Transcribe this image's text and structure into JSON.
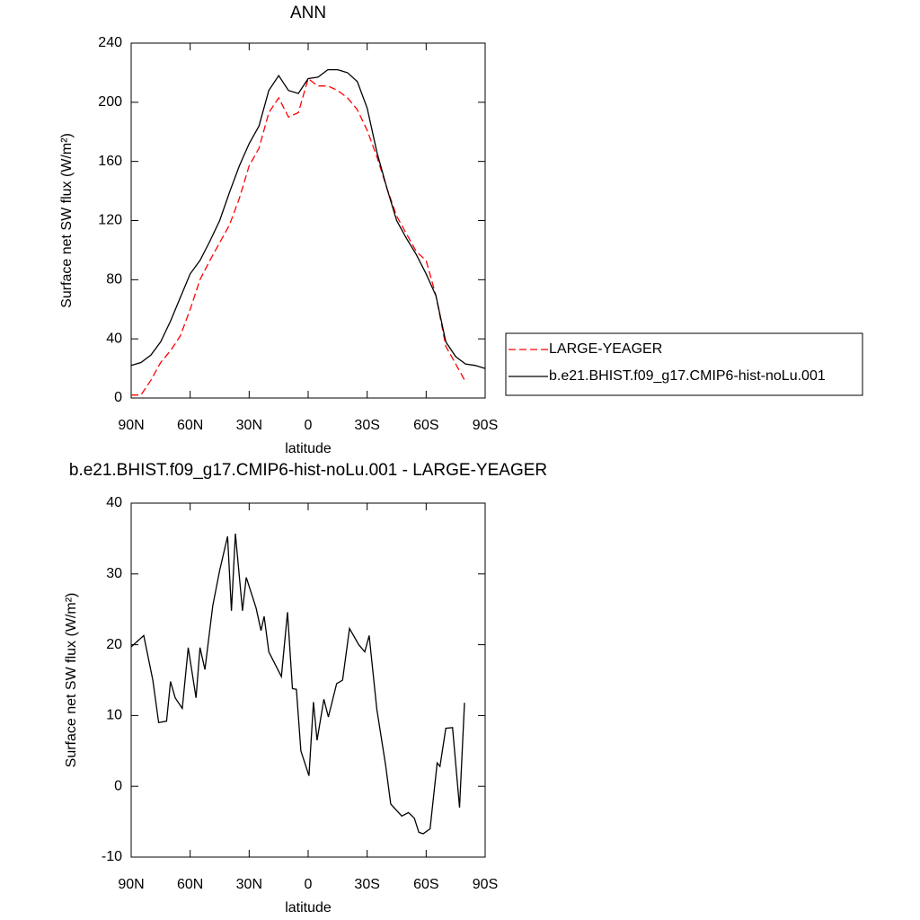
{
  "chart_data": [
    {
      "type": "line",
      "title": "ANN",
      "x_label": "latitude",
      "y_label": "Surface net SW flux (W/m²)",
      "x": [
        90,
        85,
        80,
        75,
        70,
        65,
        60,
        55,
        50,
        45,
        40,
        35,
        30,
        25,
        20,
        15,
        10,
        5,
        0,
        -5,
        -10,
        -15,
        -20,
        -25,
        -30,
        -35,
        -40,
        -45,
        -50,
        -55,
        -60,
        -65,
        -70,
        -75,
        -80,
        -85,
        -90
      ],
      "series": [
        {
          "name": "LARGE-YEAGER",
          "color": "#ff0000",
          "dash": true,
          "values": [
            2,
            2,
            12,
            24,
            32,
            42,
            60,
            80,
            93,
            105,
            117,
            135,
            157,
            169,
            193,
            203,
            190,
            193,
            216,
            211,
            211,
            208,
            203,
            195,
            181,
            163,
            142,
            123,
            111,
            99,
            93,
            69,
            35,
            23,
            11,
            null,
            null
          ]
        },
        {
          "name": "b.e21.BHIST.f09_g17.CMIP6-hist-noLu.001",
          "color": "#000000",
          "dash": false,
          "values": [
            22,
            24,
            29,
            38,
            52,
            68,
            84,
            93,
            106,
            120,
            139,
            157,
            172,
            184,
            208,
            218,
            208,
            206,
            216,
            217,
            222,
            222,
            220,
            214,
            196,
            166,
            142,
            120,
            108,
            97,
            84,
            69,
            38,
            28,
            23,
            22,
            20
          ]
        }
      ],
      "xlim": [
        90,
        -90
      ],
      "xticks": [
        {
          "value": 90,
          "label": "90N"
        },
        {
          "value": 60,
          "label": "60N"
        },
        {
          "value": 30,
          "label": "30N"
        },
        0,
        {
          "value": -30,
          "label": "30S"
        },
        {
          "value": -60,
          "label": "60S"
        },
        {
          "value": -90,
          "label": "90S"
        }
      ],
      "ylim": [
        0,
        240
      ],
      "yticks": [
        0,
        40,
        80,
        120,
        160,
        200,
        240
      ],
      "legend": "right"
    },
    {
      "type": "line",
      "title": "b.e21.BHIST.f09_g17.CMIP6-hist-noLu.001 - LARGE-YEAGER",
      "x_label": "latitude",
      "y_label": "Surface net SW flux (W/m²)",
      "x": [
        90,
        83.6,
        79,
        76,
        72,
        70,
        67.6,
        64,
        61,
        57,
        55,
        52.5,
        48.5,
        45,
        41,
        39,
        37,
        33.4,
        31.5,
        26.5,
        24,
        22.4,
        20,
        13.6,
        10.5,
        8,
        6,
        3.7,
        -0.4,
        -2.7,
        -4.5,
        -8,
        -10.3,
        -14.5,
        -17.5,
        -21,
        -25.7,
        -28.8,
        -31,
        -34.9,
        -39.4,
        -42,
        -47.6,
        -51,
        -54,
        -56.3,
        -58.5,
        -62,
        -65.6,
        -67,
        -70,
        -73.4,
        -77,
        -79.5
      ],
      "values": [
        19.7,
        21.3,
        15,
        9,
        9.2,
        14.8,
        12.5,
        11,
        19.6,
        12.5,
        19.6,
        16.5,
        25.5,
        30.5,
        35.3,
        24.8,
        35.7,
        24.8,
        29.5,
        25.2,
        22,
        24,
        19,
        15.5,
        24.6,
        13.8,
        13.7,
        5,
        1.5,
        11.9,
        6.5,
        12.3,
        9.8,
        14.5,
        15,
        22.3,
        20,
        19,
        21.3,
        10.9,
        3,
        -2.5,
        -4.2,
        -3.7,
        -4.5,
        -6.5,
        -6.7,
        -6,
        3.3,
        2.8,
        8.2,
        8.3,
        -3,
        11.8
      ],
      "color": "#000000",
      "xlim": [
        90,
        -90
      ],
      "xticks": [
        {
          "value": 90,
          "label": "90N"
        },
        {
          "value": 60,
          "label": "60N"
        },
        {
          "value": 30,
          "label": "30N"
        },
        0,
        {
          "value": -30,
          "label": "30S"
        },
        {
          "value": -60,
          "label": "60S"
        },
        {
          "value": -90,
          "label": "90S"
        }
      ],
      "ylim": [
        -10,
        40
      ],
      "yticks": [
        -10,
        0,
        10,
        20,
        30,
        40
      ]
    }
  ]
}
